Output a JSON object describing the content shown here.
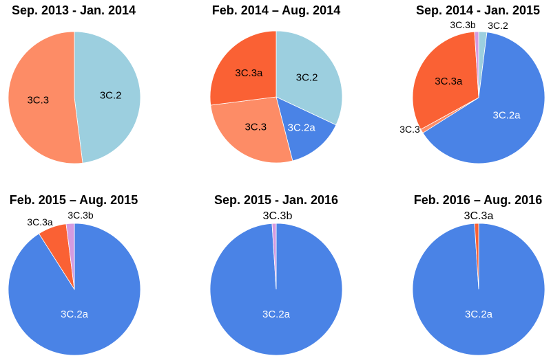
{
  "colors": {
    "3C.2": "#9ccfdf",
    "3C.2a": "#4a83e6",
    "3C.3": "#fd8c66",
    "3C.3a": "#fa6134",
    "3C.3b": "#d49be0"
  },
  "chart_data": [
    {
      "type": "pie",
      "title": "Sep. 2013 - Jan. 2014",
      "slices": [
        {
          "label": "3C.2",
          "value": 48
        },
        {
          "label": "3C.3",
          "value": 52
        }
      ]
    },
    {
      "type": "pie",
      "title": "Feb. 2014 – Aug. 2014",
      "slices": [
        {
          "label": "3C.2",
          "value": 32
        },
        {
          "label": "3C.2a",
          "value": 14
        },
        {
          "label": "3C.3",
          "value": 27
        },
        {
          "label": "3C.3a",
          "value": 27
        }
      ]
    },
    {
      "type": "pie",
      "title": "Sep. 2014 - Jan. 2015",
      "slices": [
        {
          "label": "3C.2",
          "value": 2
        },
        {
          "label": "3C.2a",
          "value": 64
        },
        {
          "label": "3C.3",
          "value": 1
        },
        {
          "label": "3C.3a",
          "value": 32
        },
        {
          "label": "3C.3b",
          "value": 1
        }
      ]
    },
    {
      "type": "pie",
      "title": "Feb. 2015 – Aug. 2015",
      "slices": [
        {
          "label": "3C.2a",
          "value": 91
        },
        {
          "label": "3C.3a",
          "value": 7
        },
        {
          "label": "3C.3b",
          "value": 2
        }
      ]
    },
    {
      "type": "pie",
      "title": "Sep. 2015 - Jan. 2016",
      "slices": [
        {
          "label": "3C.2a",
          "value": 99
        },
        {
          "label": "3C.3b",
          "value": 1
        }
      ]
    },
    {
      "type": "pie",
      "title": "Feb. 2016 – Aug. 2016",
      "slices": [
        {
          "label": "3C.2a",
          "value": 99
        },
        {
          "label": "3C.3a",
          "value": 1
        }
      ]
    }
  ]
}
